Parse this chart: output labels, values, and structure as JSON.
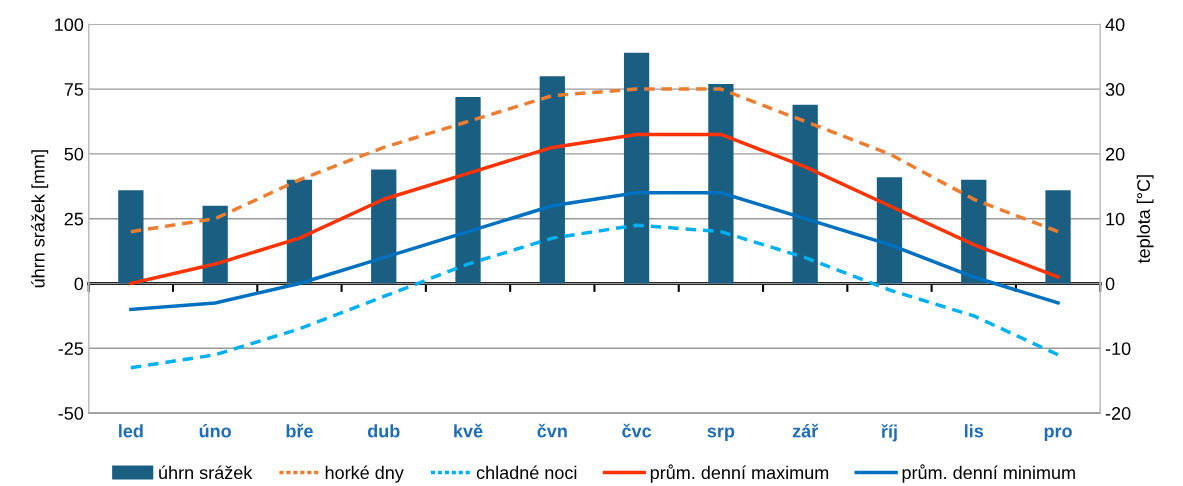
{
  "chart_data": {
    "type": "bar",
    "ylabel": "úhrn srážek [mm]",
    "y2label": "teplota [°C]",
    "categories": [
      "led",
      "úno",
      "bře",
      "dub",
      "kvě",
      "čvn",
      "čvc",
      "srp",
      "zář",
      "říj",
      "lis",
      "pro"
    ],
    "series": [
      {
        "name": "úhrn srážek",
        "type": "bar",
        "color": "#1a5f82",
        "values": [
          36,
          30,
          40,
          44,
          72,
          80,
          89,
          77,
          69,
          41,
          40,
          36
        ]
      },
      {
        "name": "horké dny",
        "type": "line",
        "axis": "y2",
        "line_style": "dashed",
        "color": "#ed7d31",
        "values": [
          8,
          10,
          16,
          21,
          25,
          29,
          30,
          30,
          25,
          20,
          13,
          8
        ]
      },
      {
        "name": "chladné noci",
        "type": "line",
        "axis": "y2",
        "line_style": "dashed",
        "color": "#00b0f0",
        "values": [
          -13,
          -11,
          -7,
          -2,
          3,
          7,
          9,
          8,
          4,
          -1,
          -5,
          -11
        ]
      },
      {
        "name": "prům. denní maximum",
        "type": "line",
        "axis": "y2",
        "line_style": "solid",
        "color": "#ff3300",
        "values": [
          0,
          3,
          7,
          13,
          17,
          21,
          23,
          23,
          18,
          12,
          6,
          1
        ]
      },
      {
        "name": "prům. denní minimum",
        "type": "line",
        "axis": "y2",
        "line_style": "solid",
        "color": "#0070c0",
        "values": [
          -4,
          -3,
          0,
          4,
          8,
          12,
          14,
          14,
          10,
          6,
          1,
          -3
        ]
      }
    ],
    "ylim": [
      -50,
      100
    ],
    "yticks": [
      -50,
      -25,
      0,
      25,
      50,
      75,
      100
    ],
    "y2lim": [
      -20,
      40
    ],
    "y2ticks": [
      -20,
      -10,
      0,
      10,
      20,
      30,
      40
    ],
    "grid": "y",
    "legend": "bottom",
    "marker": "none"
  }
}
